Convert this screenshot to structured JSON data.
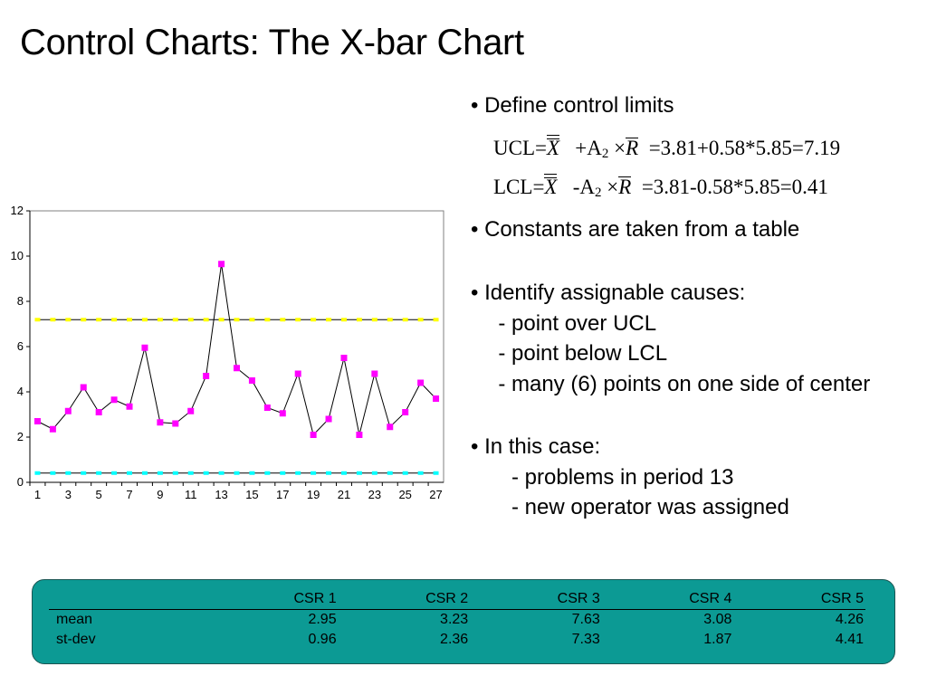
{
  "title": "Control Charts: The X-bar Chart",
  "bullets": [
    "• Define control limits",
    "• Constants are taken from a table",
    "• Identify assignable causes:",
    "  - point over UCL",
    "  - point below LCL",
    "  - many (6) points on one side of center",
    "• In this case:",
    "   - problems in period 13",
    "   - new operator was assigned"
  ],
  "formulas": {
    "ucl": {
      "label": "UCL=",
      "xbar": "X",
      "op": "+A",
      "sub": "2",
      "times": "×",
      "r": "R",
      "rest": "=3.81+0.58*5.85=7.19"
    },
    "lcl": {
      "label": "LCL=",
      "xbar": "X",
      "op": "-A",
      "sub": "2",
      "times": "×",
      "r": "R",
      "rest": "=3.81-0.58*5.85=0.41"
    }
  },
  "chart_data": {
    "type": "line",
    "x": [
      1,
      2,
      3,
      4,
      5,
      6,
      7,
      8,
      9,
      10,
      11,
      12,
      13,
      14,
      15,
      16,
      17,
      18,
      19,
      20,
      21,
      22,
      23,
      24,
      25,
      26,
      27
    ],
    "xtick_labels": [
      "1",
      "3",
      "5",
      "7",
      "9",
      "11",
      "13",
      "15",
      "17",
      "19",
      "21",
      "23",
      "25",
      "27"
    ],
    "ytick_labels": [
      "0",
      "2",
      "4",
      "6",
      "8",
      "10",
      "12"
    ],
    "ylim": [
      0,
      12
    ],
    "series": [
      {
        "values": [
          2.7,
          2.35,
          3.15,
          4.2,
          3.1,
          3.65,
          3.35,
          5.95,
          2.65,
          2.6,
          3.15,
          4.7,
          9.65,
          5.05,
          4.5,
          3.3,
          3.05,
          4.8,
          2.1,
          2.8,
          5.5,
          2.1,
          4.8,
          2.45,
          3.1,
          4.4,
          3.7
        ],
        "color": "#ff00ff"
      }
    ],
    "ucl": {
      "value": 7.19,
      "color": "#ffff00"
    },
    "lcl": {
      "value": 0.41,
      "color": "#00ffff"
    }
  },
  "table": {
    "headers": [
      "",
      "CSR 1",
      "CSR 2",
      "CSR 3",
      "CSR 4",
      "CSR 5"
    ],
    "rows": [
      [
        "mean",
        "2.95",
        "3.23",
        "7.63",
        "3.08",
        "4.26"
      ],
      [
        "st-dev",
        "0.96",
        "2.36",
        "7.33",
        "1.87",
        "4.41"
      ]
    ],
    "background": "#0c9a94"
  }
}
